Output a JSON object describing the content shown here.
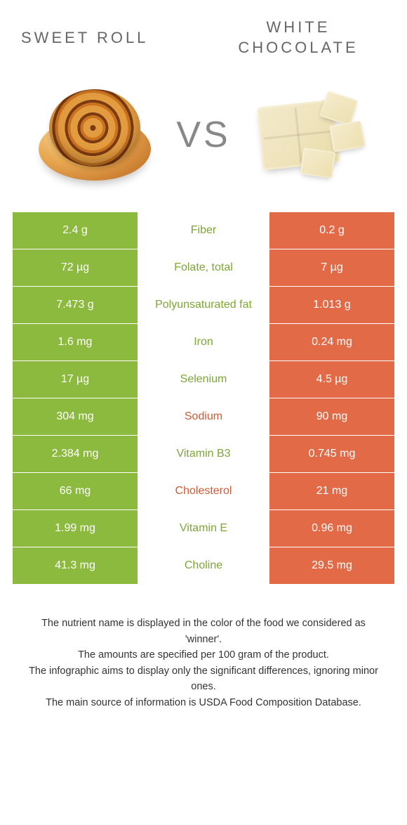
{
  "colors": {
    "left": "#8cba3e",
    "right": "#e26a47",
    "mid_green": "#7ca636",
    "mid_orange": "#d05a38",
    "title_text": "#666666"
  },
  "title_left": "SWEET ROLL",
  "title_right_line1": "WHITE",
  "title_right_line2": "CHOCOLATE",
  "vs_label": "VS",
  "rows": [
    {
      "left": "2.4 g",
      "name": "Fiber",
      "winner": "left",
      "right": "0.2 g"
    },
    {
      "left": "72 µg",
      "name": "Folate, total",
      "winner": "left",
      "right": "7 µg"
    },
    {
      "left": "7.473 g",
      "name": "Polyunsaturated fat",
      "winner": "left",
      "right": "1.013 g"
    },
    {
      "left": "1.6 mg",
      "name": "Iron",
      "winner": "left",
      "right": "0.24 mg"
    },
    {
      "left": "17 µg",
      "name": "Selenium",
      "winner": "left",
      "right": "4.5 µg"
    },
    {
      "left": "304 mg",
      "name": "Sodium",
      "winner": "right",
      "right": "90 mg"
    },
    {
      "left": "2.384 mg",
      "name": "Vitamin B3",
      "winner": "left",
      "right": "0.745 mg"
    },
    {
      "left": "66 mg",
      "name": "Cholesterol",
      "winner": "right",
      "right": "21 mg"
    },
    {
      "left": "1.99 mg",
      "name": "Vitamin E",
      "winner": "left",
      "right": "0.96 mg"
    },
    {
      "left": "41.3 mg",
      "name": "Choline",
      "winner": "left",
      "right": "29.5 mg"
    }
  ],
  "footnotes": [
    "The nutrient name is displayed in the color of the food we considered as 'winner'.",
    "The amounts are specified per 100 gram of the product.",
    "The infographic aims to display only the significant differences, ignoring minor ones.",
    "The main source of information is USDA Food Composition Database."
  ]
}
